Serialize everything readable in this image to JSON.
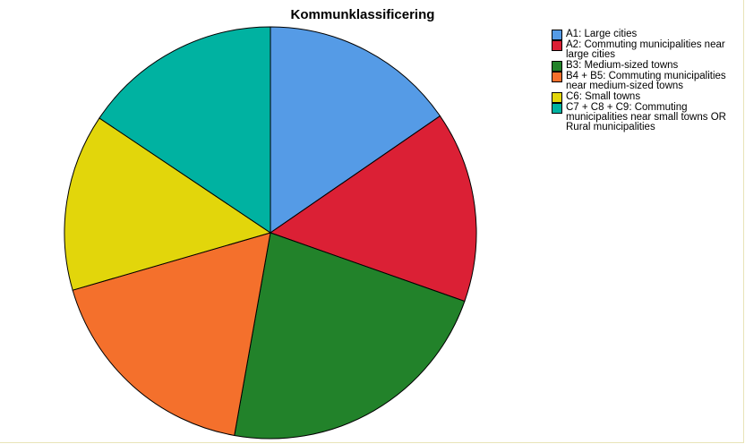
{
  "chart_data": {
    "type": "pie",
    "title": "Kommunklassificering",
    "legend_position": "right",
    "start_angle": "top, clockwise",
    "slices": [
      {
        "label": "A1: Large cities",
        "value": 15.4,
        "color": "#559be6"
      },
      {
        "label": "A2: Commuting municipalities near large cities",
        "value": 15.0,
        "color": "#db2035"
      },
      {
        "label": "B3: Medium-sized towns",
        "value": 22.4,
        "color": "#22822a"
      },
      {
        "label": "B4 + B5: Commuting municipalities near medium-sized towns",
        "value": 17.7,
        "color": "#f4702c"
      },
      {
        "label": "C6: Small towns",
        "value": 13.9,
        "color": "#e2d60b"
      },
      {
        "label": "C7 + C8 + C9: Commuting municipalities near small towns OR Rural municipalities",
        "value": 15.6,
        "color": "#00b2a1"
      }
    ]
  }
}
